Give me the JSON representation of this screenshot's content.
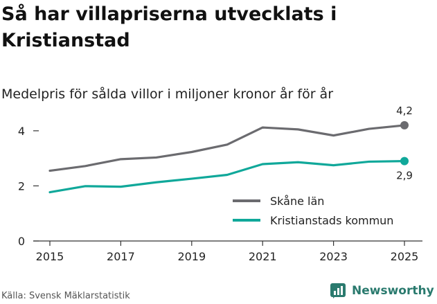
{
  "title": "Så har villapriserna utvecklats i Kristianstad",
  "subtitle": "Medelpris för sålda villor i miljoner kronor år för år",
  "source": "Källa: Svensk Mäklarstatistik",
  "brand": "Newsworthy",
  "colors": {
    "skane": "#6b6b6f",
    "kristianstad": "#10a89a",
    "axis": "#333333",
    "brand": "#2a7a6e"
  },
  "chart_data": {
    "type": "line",
    "title": "Så har villapriserna utvecklats i Kristianstad",
    "subtitle": "Medelpris för sålda villor i miljoner kronor år för år",
    "xlabel": "",
    "ylabel": "",
    "x": [
      2015,
      2016,
      2017,
      2018,
      2019,
      2020,
      2021,
      2022,
      2023,
      2024,
      2025
    ],
    "xticks": [
      "2015",
      "2017",
      "2019",
      "2021",
      "2023",
      "2025"
    ],
    "yticks": [
      "0",
      "2",
      "4"
    ],
    "ylim": [
      0,
      4.6
    ],
    "grid": false,
    "legend_position": "bottom-right",
    "series": [
      {
        "name": "Skåne län",
        "color": "#6b6b6f",
        "values": [
          2.55,
          2.72,
          2.97,
          3.03,
          3.23,
          3.5,
          4.12,
          4.05,
          3.83,
          4.07,
          4.2
        ],
        "end_label": "4,2"
      },
      {
        "name": "Kristianstads kommun",
        "color": "#10a89a",
        "values": [
          1.77,
          1.99,
          1.97,
          2.13,
          2.26,
          2.4,
          2.79,
          2.86,
          2.75,
          2.88,
          2.9
        ],
        "end_label": "2,9"
      }
    ]
  }
}
